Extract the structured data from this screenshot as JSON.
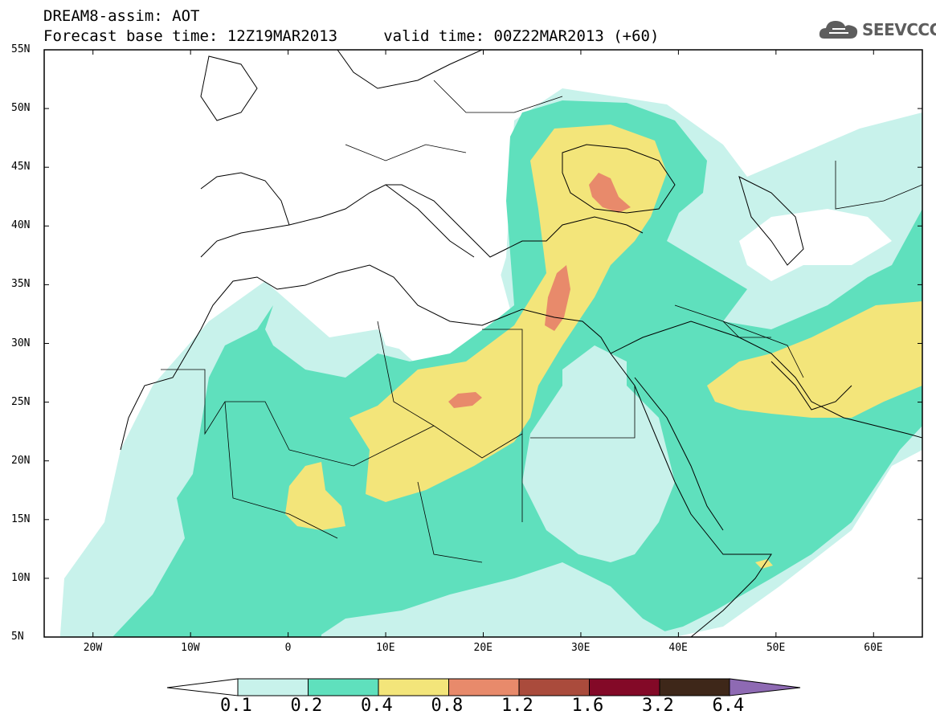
{
  "header": {
    "line1": "DREAM8-assim: AOT",
    "line2": "Forecast base time: 12Z19MAR2013     valid time: 00Z22MAR2013 (+60)"
  },
  "logo": {
    "icon": "cloud-icon",
    "text": "SEEVCCC"
  },
  "map": {
    "lon_range": [
      -25,
      65
    ],
    "lat_range": [
      5,
      55
    ],
    "lat_labels": [
      "55N",
      "50N",
      "45N",
      "40N",
      "35N",
      "30N",
      "25N",
      "20N",
      "15N",
      "10N",
      "5N"
    ],
    "lon_labels": [
      "20W",
      "10W",
      "0",
      "10E",
      "20E",
      "30E",
      "40E",
      "50E",
      "60E"
    ]
  },
  "colorbar": {
    "levels": [
      "0.1",
      "0.2",
      "0.4",
      "0.8",
      "1.2",
      "1.6",
      "3.2",
      "6.4"
    ],
    "colors": [
      "#ffffff",
      "#c8f2eb",
      "#5fe0bd",
      "#f3e57a",
      "#e88a6b",
      "#aa4b3c",
      "#830927",
      "#3e2719",
      "#8e6ab3"
    ]
  }
}
